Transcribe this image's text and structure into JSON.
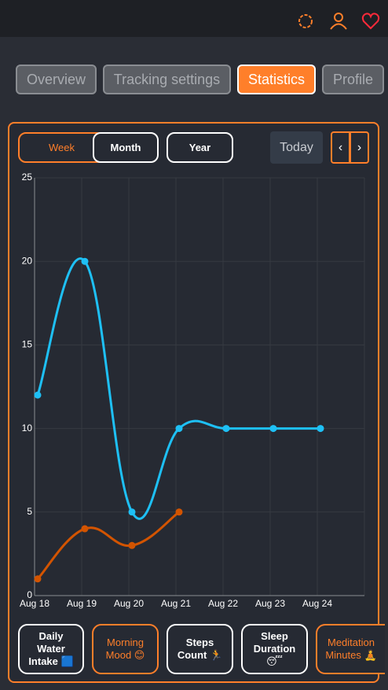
{
  "tabs": [
    "Overview",
    "Tracking settings",
    "Statistics",
    "Profile"
  ],
  "period_buttons": [
    "Week",
    "Month",
    "Year"
  ],
  "today_button": "Today",
  "nav_buttons": [
    "‹",
    "›"
  ],
  "metrics": [
    "Daily Water Intake 🟦",
    "Morning Mood 😊",
    "Steps Count 🏃",
    "Sleep Duration 😴",
    "Meditation Minutes 🧘"
  ],
  "chart_data": {
    "type": "line",
    "categories": [
      "Aug 18",
      "Aug 19",
      "Aug 20",
      "Aug 21",
      "Aug 22",
      "Aug 23",
      "Aug 24"
    ],
    "series": [
      {
        "name": "Daily Water Intake",
        "color": "#1ec0f5",
        "values": [
          12,
          20,
          5,
          10,
          10,
          10,
          10
        ]
      },
      {
        "name": "Morning Mood",
        "color": "#d35400",
        "values": [
          1,
          4,
          3,
          5,
          null,
          null,
          null
        ]
      }
    ],
    "ylim": [
      0,
      25
    ],
    "yticks": [
      0,
      5,
      10,
      15,
      20,
      25
    ],
    "grid": true
  }
}
